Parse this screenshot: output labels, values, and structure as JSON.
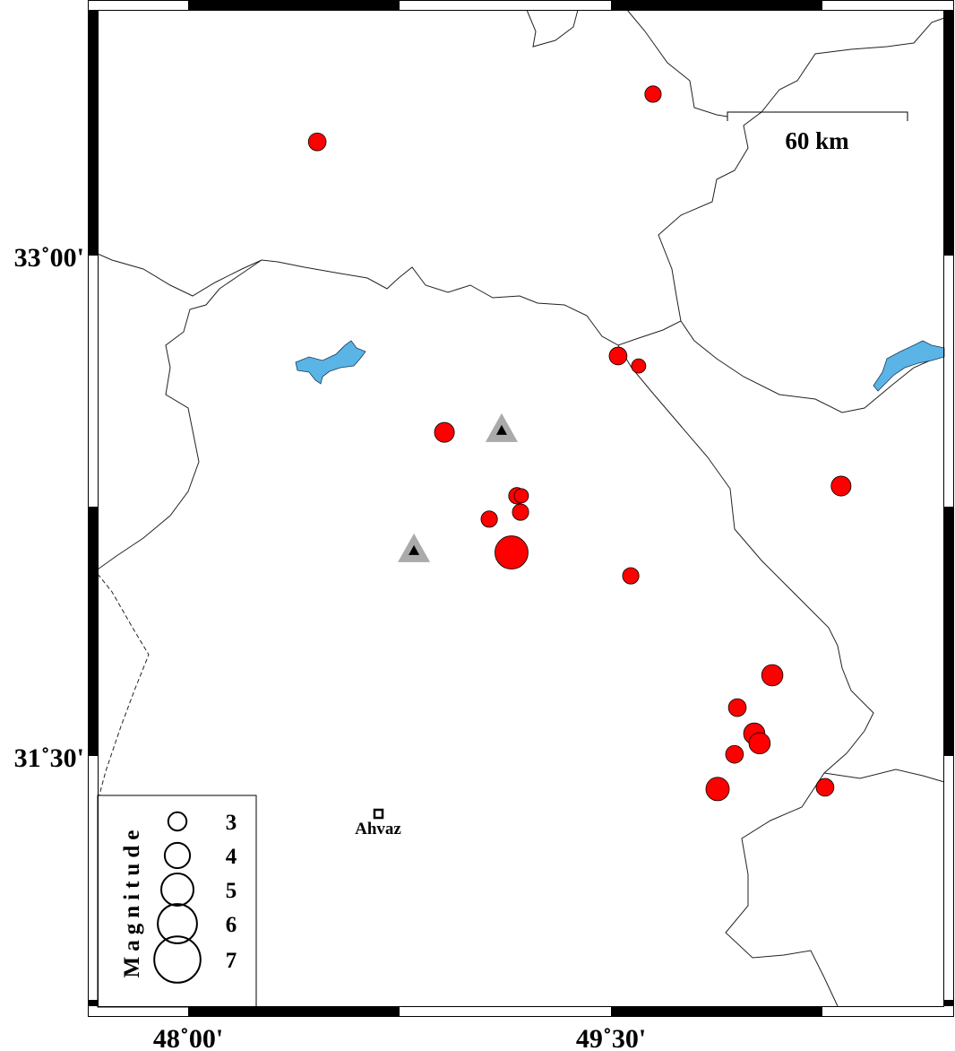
{
  "map": {
    "lon_range": [
      47.67,
      50.67
    ],
    "lat_range": [
      30.76,
      33.77
    ],
    "x_ticks": [
      {
        "value": 48.0,
        "label": "48˚00'"
      },
      {
        "value": 49.5,
        "label": "49˚30'"
      }
    ],
    "y_ticks": [
      {
        "value": 33.0,
        "label": "33˚00'"
      },
      {
        "value": 31.5,
        "label": "31˚30'"
      }
    ],
    "scale_bar": {
      "label": "60 km"
    },
    "city": {
      "name": "Ahvaz",
      "lon": 48.678,
      "lat": 31.4,
      "icon": "square-icon"
    },
    "colors": {
      "event": "#ff0000",
      "lake": "#5ab4e5",
      "station_outer": "#aaaaaa",
      "station_inner": "#000000"
    }
  },
  "legend": {
    "title": "Magnitude",
    "magnitudes": [
      "3",
      "4",
      "5",
      "6",
      "7"
    ]
  },
  "stations": [
    {
      "lon": 49.112,
      "lat": 32.476
    },
    {
      "lon": 48.801,
      "lat": 32.116
    }
  ],
  "events": [
    {
      "lon": 48.458,
      "lat": 33.341,
      "mag": 2.8
    },
    {
      "lon": 49.649,
      "lat": 33.484,
      "mag": 2.6
    },
    {
      "lon": 49.525,
      "lat": 32.699,
      "mag": 2.8
    },
    {
      "lon": 49.598,
      "lat": 32.669,
      "mag": 2.3
    },
    {
      "lon": 48.909,
      "lat": 32.47,
      "mag": 3.1
    },
    {
      "lon": 49.166,
      "lat": 32.28,
      "mag": 2.6
    },
    {
      "lon": 49.182,
      "lat": 32.28,
      "mag": 2.3
    },
    {
      "lon": 49.179,
      "lat": 32.231,
      "mag": 2.6
    },
    {
      "lon": 49.068,
      "lat": 32.21,
      "mag": 2.6
    },
    {
      "lon": 49.147,
      "lat": 32.11,
      "mag": 5.0
    },
    {
      "lon": 49.57,
      "lat": 32.04,
      "mag": 2.6
    },
    {
      "lon": 50.316,
      "lat": 32.309,
      "mag": 3.1
    },
    {
      "lon": 50.072,
      "lat": 31.742,
      "mag": 3.3
    },
    {
      "lon": 49.948,
      "lat": 31.645,
      "mag": 2.8
    },
    {
      "lon": 50.008,
      "lat": 31.567,
      "mag": 3.3
    },
    {
      "lon": 50.027,
      "lat": 31.538,
      "mag": 3.3
    },
    {
      "lon": 49.938,
      "lat": 31.505,
      "mag": 2.8
    },
    {
      "lon": 49.878,
      "lat": 31.401,
      "mag": 3.6
    },
    {
      "lon": 50.259,
      "lat": 31.406,
      "mag": 2.8
    }
  ]
}
